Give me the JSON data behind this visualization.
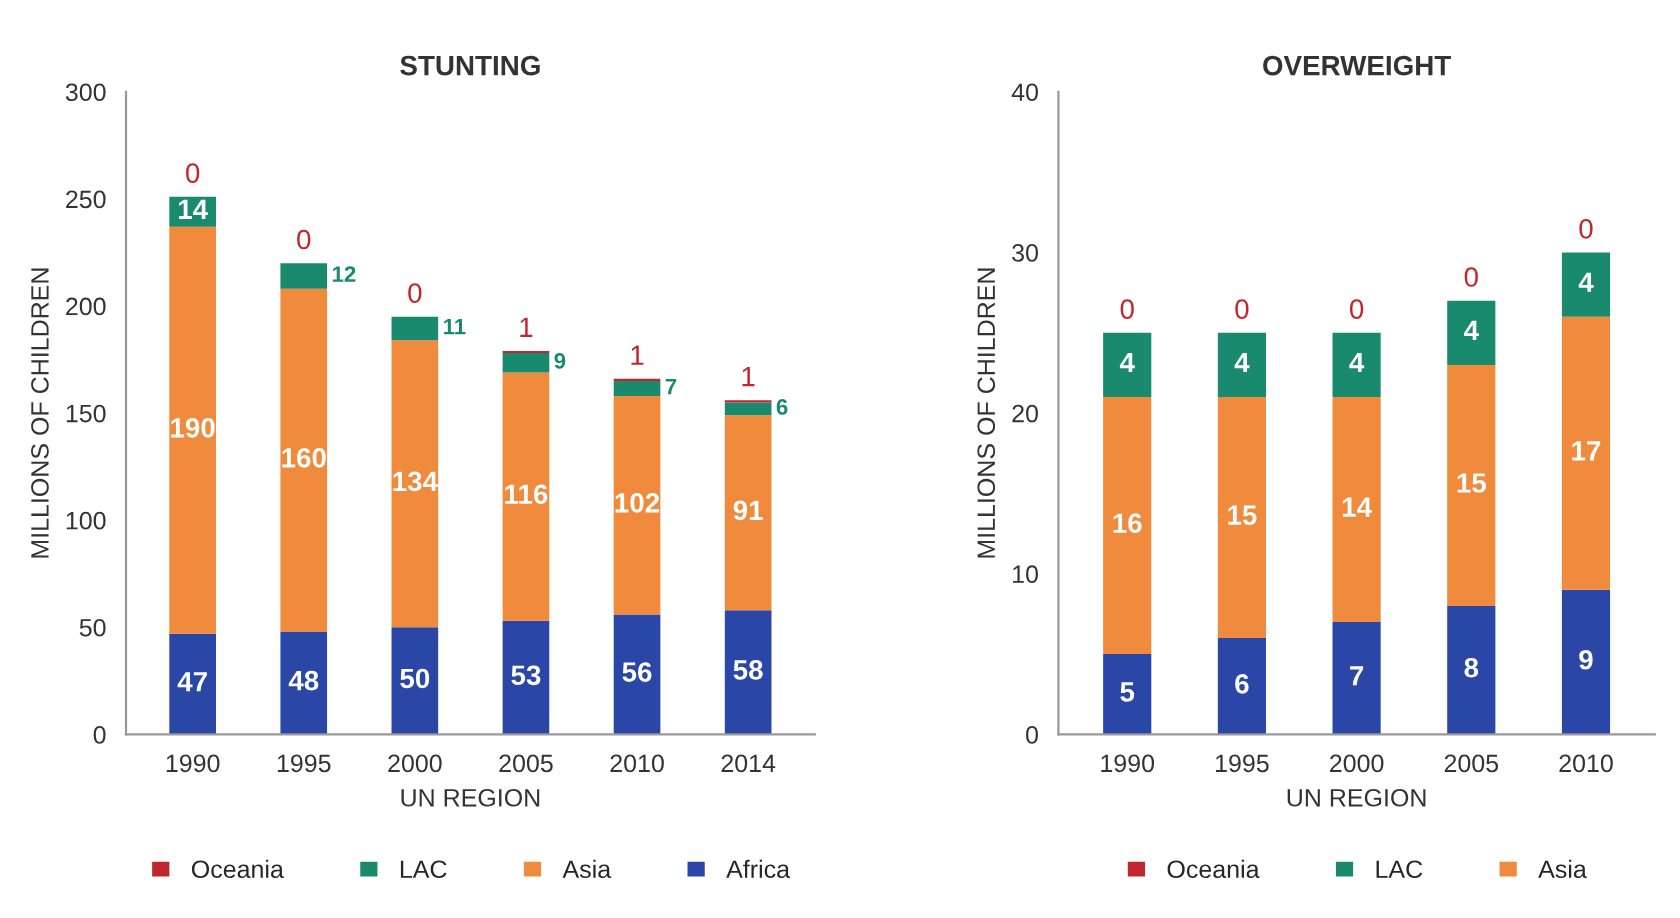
{
  "chart_data": [
    {
      "type": "bar",
      "title": "STUNTING",
      "xlabel": "UN REGION",
      "ylabel": "MILLIONS OF CHILDREN",
      "stacked": true,
      "data_labels": true,
      "legend": "bottom",
      "grid": false,
      "categories": [
        "1990",
        "1995",
        "2000",
        "2005",
        "2010",
        "2014"
      ],
      "ylim": [
        0,
        300
      ],
      "yticks": [
        0,
        50,
        100,
        150,
        200,
        250,
        300
      ],
      "series": [
        {
          "name": "Africa",
          "color": "#2a47a8",
          "values": [
            47,
            48,
            50,
            53,
            56,
            58
          ]
        },
        {
          "name": "Asia",
          "color": "#f08a3c",
          "values": [
            190,
            160,
            134,
            116,
            102,
            91
          ]
        },
        {
          "name": "LAC",
          "color": "#1a8a6e",
          "values": [
            14,
            12,
            11,
            9,
            7,
            6
          ]
        },
        {
          "name": "Oceania",
          "color": "#c0272d",
          "values": [
            0,
            0,
            0,
            1,
            1,
            1
          ]
        }
      ]
    },
    {
      "type": "bar",
      "title": "OVERWEIGHT",
      "xlabel": "UN REGION",
      "ylabel": "MILLIONS OF CHILDREN",
      "stacked": true,
      "data_labels": true,
      "legend": "bottom",
      "grid": false,
      "categories": [
        "1990",
        "1995",
        "2000",
        "2005",
        "2010"
      ],
      "ylim": [
        0,
        40
      ],
      "yticks": [
        0,
        10,
        20,
        30,
        40
      ],
      "series": [
        {
          "color": "#2a47a8",
          "values": [
            5,
            6,
            7,
            8,
            9
          ]
        },
        {
          "name": "Asia",
          "color": "#f08a3c",
          "values": [
            16,
            15,
            14,
            15,
            17
          ]
        },
        {
          "name": "LAC",
          "color": "#1a8a6e",
          "values": [
            4,
            4,
            4,
            4,
            4
          ]
        },
        {
          "name": "Oceania",
          "color": "#c0272d",
          "values": [
            0,
            0,
            0,
            0,
            0
          ]
        }
      ]
    }
  ]
}
